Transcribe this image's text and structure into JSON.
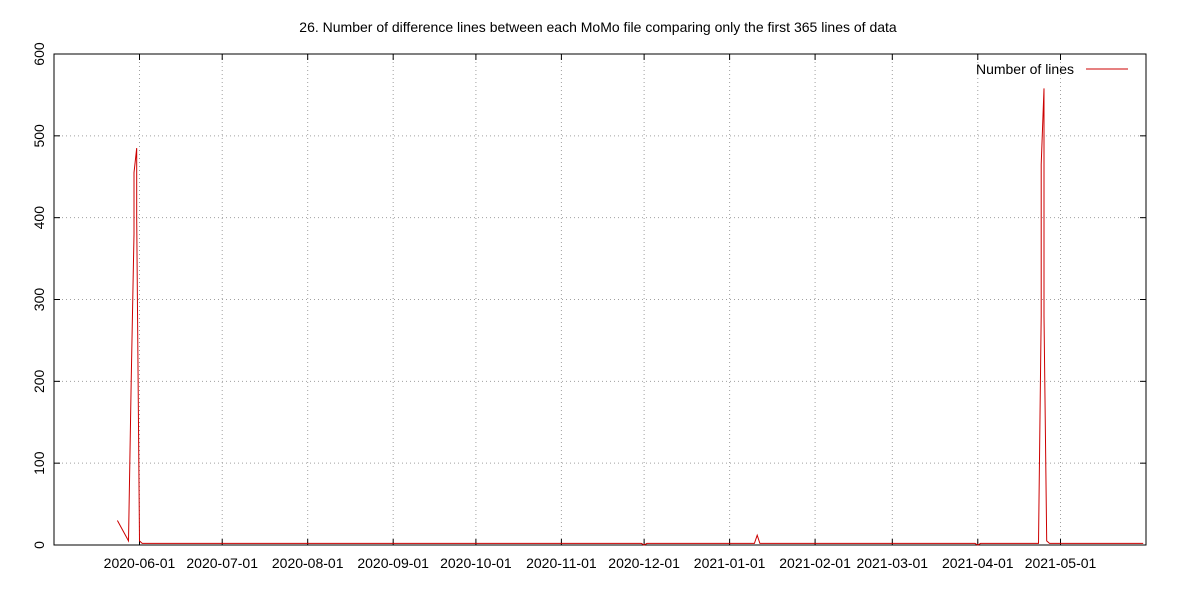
{
  "chart_data": {
    "type": "line",
    "title": "26. Number of difference lines between each MoMo file comparing only the first 365 lines of data",
    "xlabel": "",
    "ylabel": "",
    "x_type": "date",
    "xlim": [
      "2020-05-01",
      "2021-06-01"
    ],
    "ylim": [
      0,
      600
    ],
    "yticks": [
      0,
      100,
      200,
      300,
      400,
      500,
      600
    ],
    "xticks": [
      "2020-06-01",
      "2020-07-01",
      "2020-08-01",
      "2020-09-01",
      "2020-10-01",
      "2020-11-01",
      "2020-12-01",
      "2021-01-01",
      "2021-02-01",
      "2021-03-01",
      "2021-04-01",
      "2021-05-01"
    ],
    "grid": true,
    "legend_position": "top-right",
    "series": [
      {
        "name": "Number of lines",
        "color": "#cc0000",
        "points": [
          [
            "2020-05-24",
            30
          ],
          [
            "2020-05-28",
            5
          ],
          [
            "2020-05-29",
            200
          ],
          [
            "2020-05-30",
            380
          ],
          [
            "2020-05-30",
            455
          ],
          [
            "2020-05-31",
            485
          ],
          [
            "2020-05-31",
            400
          ],
          [
            "2020-06-01",
            5
          ],
          [
            "2020-06-02",
            2
          ],
          [
            "2020-11-30",
            2
          ],
          [
            "2020-12-01",
            0
          ],
          [
            "2020-12-02",
            2
          ],
          [
            "2021-01-10",
            2
          ],
          [
            "2021-01-11",
            12
          ],
          [
            "2021-01-12",
            2
          ],
          [
            "2021-03-31",
            2
          ],
          [
            "2021-04-01",
            0
          ],
          [
            "2021-04-02",
            2
          ],
          [
            "2021-04-23",
            2
          ],
          [
            "2021-04-24",
            280
          ],
          [
            "2021-04-24",
            465
          ],
          [
            "2021-04-25",
            558
          ],
          [
            "2021-04-25",
            280
          ],
          [
            "2021-04-26",
            5
          ],
          [
            "2021-04-27",
            2
          ],
          [
            "2021-05-31",
            2
          ]
        ]
      }
    ]
  }
}
